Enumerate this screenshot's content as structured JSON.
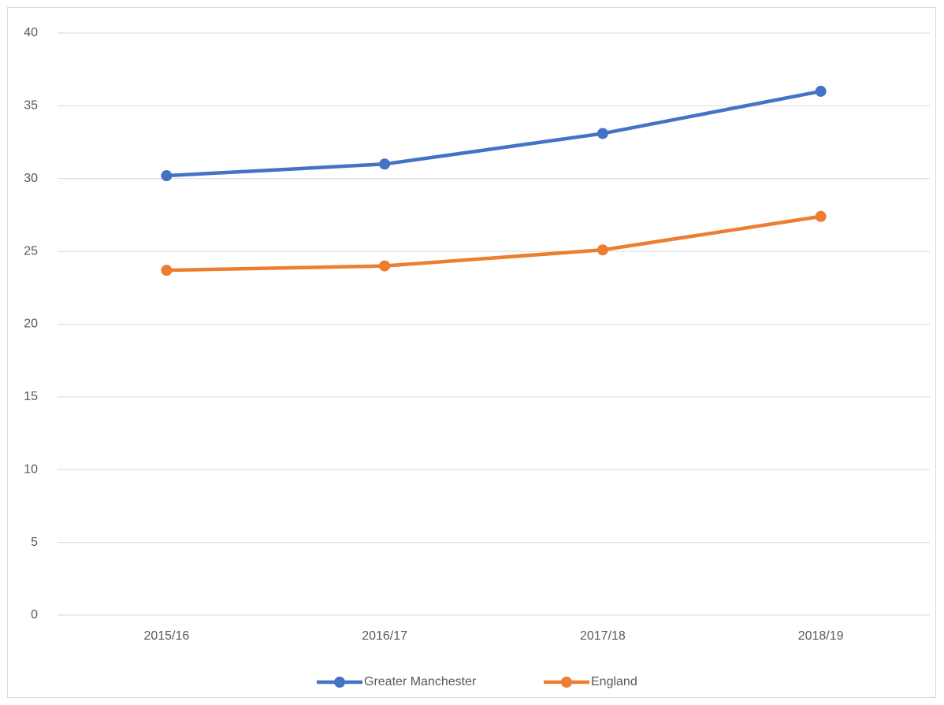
{
  "chart_data": {
    "type": "line",
    "categories": [
      "2015/16",
      "2016/17",
      "2017/18",
      "2018/19"
    ],
    "series": [
      {
        "name": "Greater Manchester",
        "color": "#4472c4",
        "values": [
          30.2,
          31.0,
          33.1,
          36.0
        ]
      },
      {
        "name": "England",
        "color": "#ed7d31",
        "values": [
          23.7,
          24.0,
          25.1,
          27.4
        ]
      }
    ],
    "ylim": [
      0,
      40
    ],
    "yticks": [
      0,
      5,
      10,
      15,
      20,
      25,
      30,
      35,
      40
    ],
    "grid": true,
    "legend": "bottom"
  }
}
